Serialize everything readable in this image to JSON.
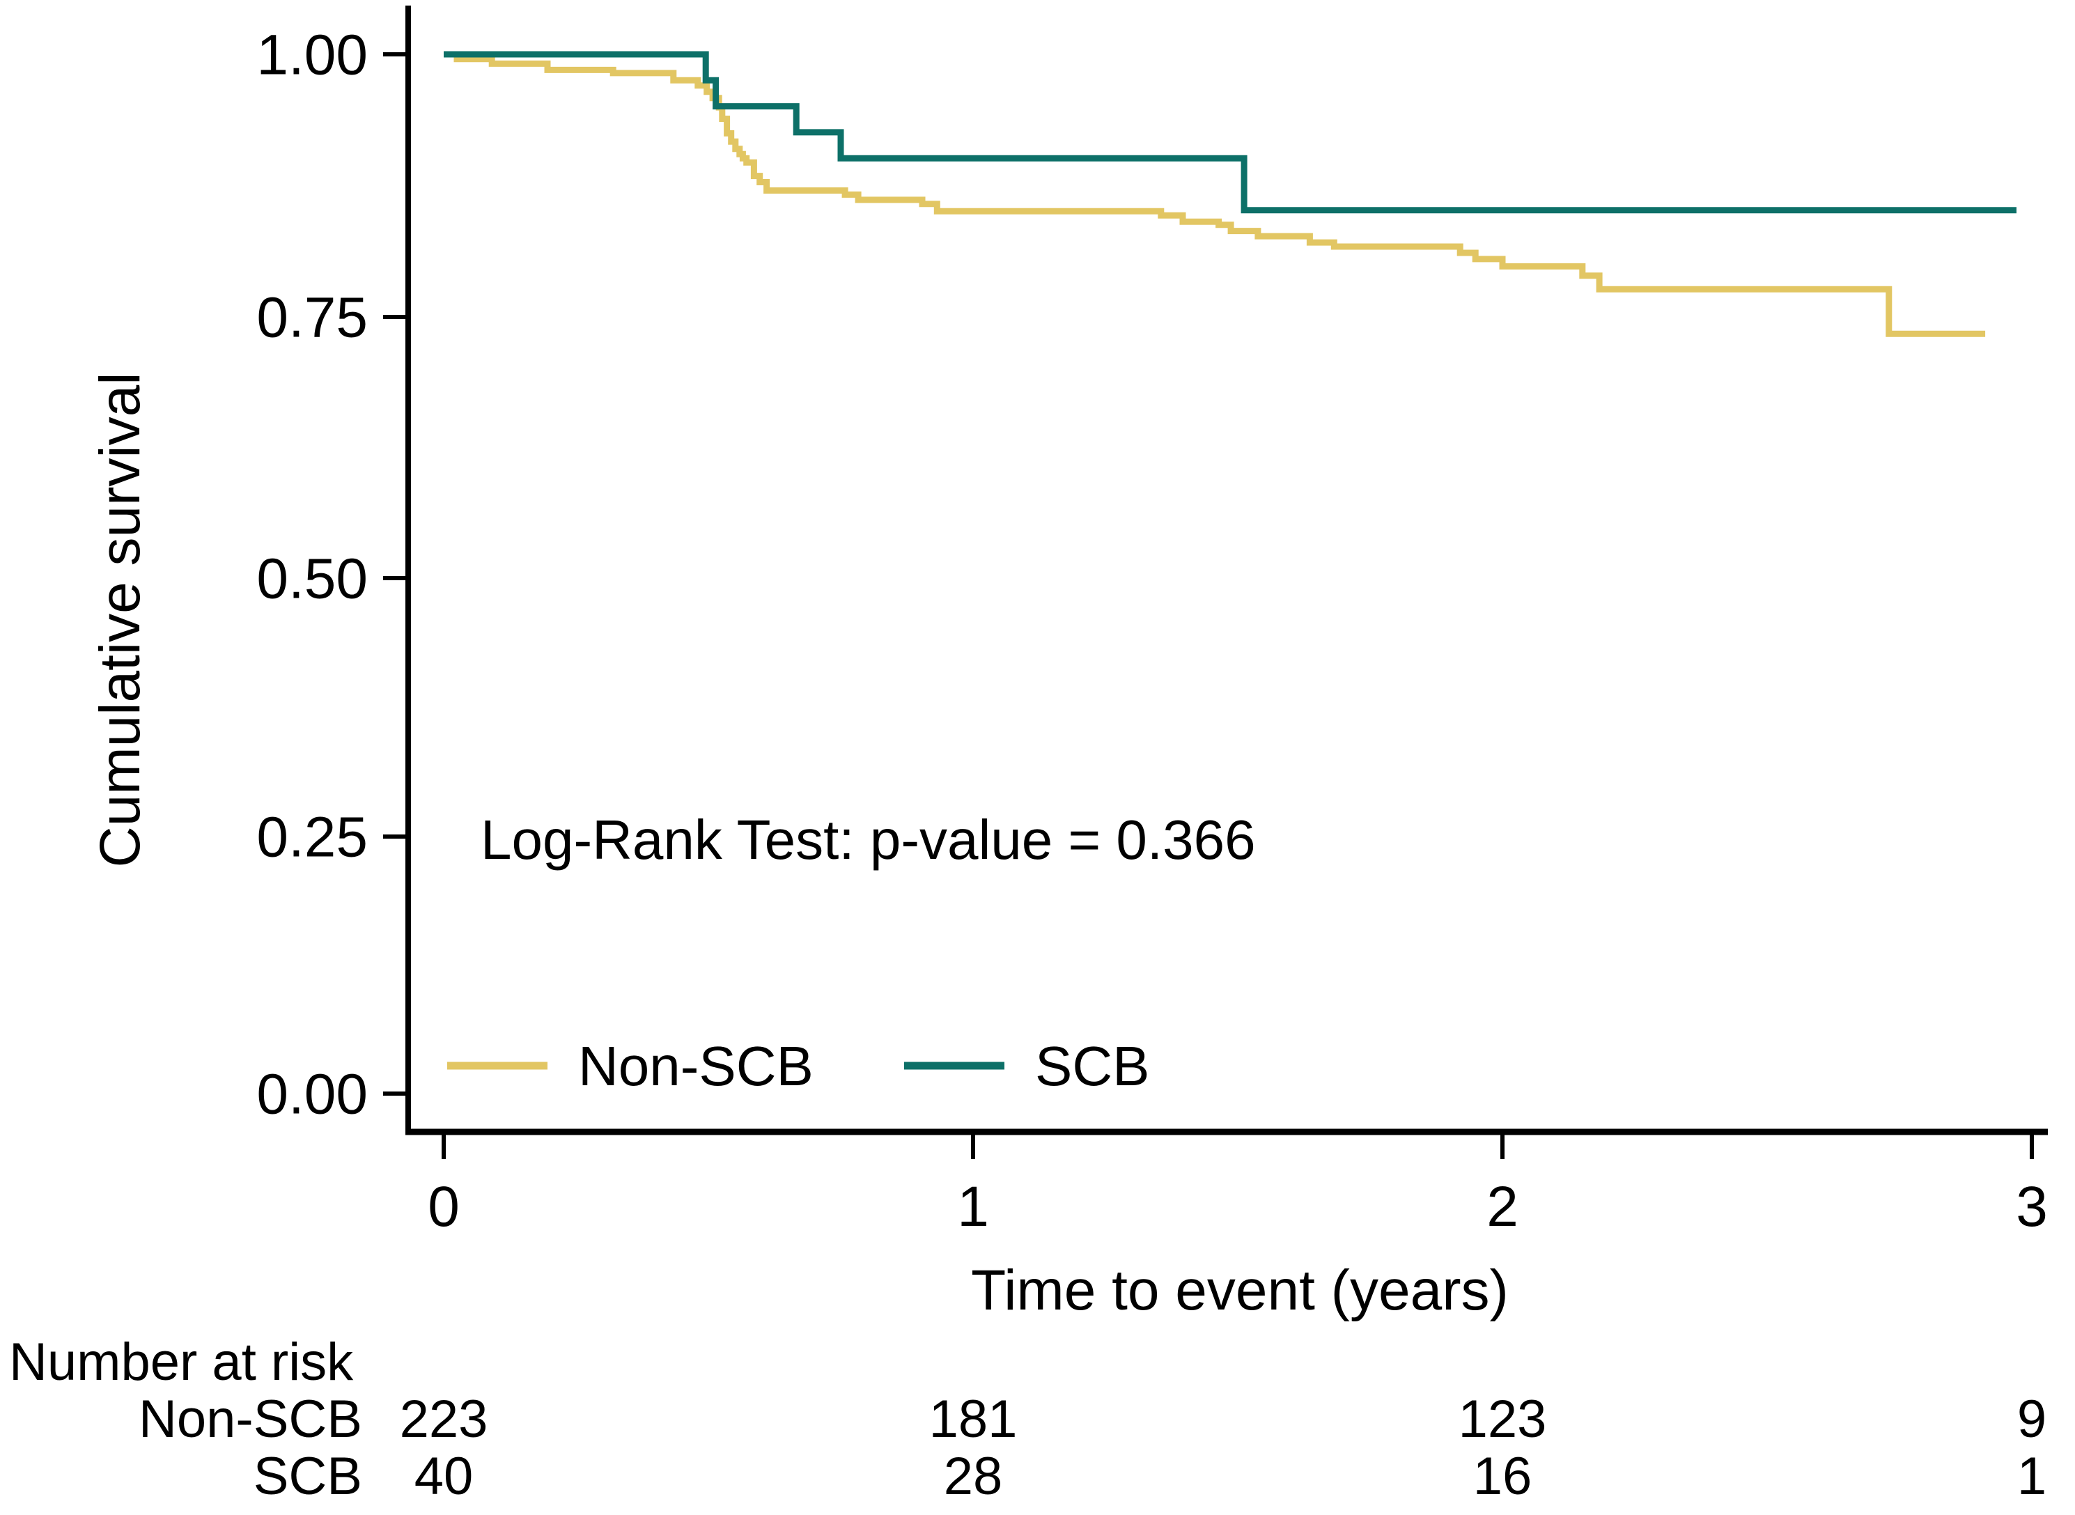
{
  "figure": {
    "y_axis": {
      "label": "Cumulative survival",
      "tick_labels": [
        "1.00",
        "0.75",
        "0.50",
        "0.25",
        "0.00"
      ]
    },
    "x_axis": {
      "label": "Time to event (years)",
      "tick_labels": [
        "0",
        "1",
        "2",
        "3"
      ]
    },
    "annotation": "Log-Rank Test: p-value = 0.366",
    "legend": {
      "items": [
        {
          "label": "Non-SCB",
          "color": "#e2c663"
        },
        {
          "label": "SCB",
          "color": "#0d7068"
        }
      ]
    },
    "risk_table": {
      "title": "Number at risk",
      "rows": [
        {
          "label": "Non-SCB",
          "values": [
            "223",
            "181",
            "123",
            "9"
          ]
        },
        {
          "label": "SCB",
          "values": [
            "40",
            "28",
            "16",
            "1"
          ]
        }
      ]
    }
  },
  "chart_data": {
    "type": "line",
    "subtype": "kaplan-meier-step",
    "title": "",
    "xlabel": "Time to event (years)",
    "ylabel": "Cumulative survival",
    "xlim": [
      0,
      3
    ],
    "ylim": [
      0.0,
      1.0
    ],
    "x_ticks": [
      0,
      1,
      2,
      3
    ],
    "y_ticks": [
      0.0,
      0.25,
      0.5,
      0.75,
      1.0
    ],
    "grid": false,
    "legend_position": "inside-bottom-left",
    "annotation": "Log-Rank Test: p-value = 0.366",
    "series": [
      {
        "name": "Non-SCB",
        "color": "#e2c663",
        "end_time": 2.912,
        "steps": [
          [
            0.0,
            1.0
          ],
          [
            0.025,
            0.9955
          ],
          [
            0.091,
            0.991
          ],
          [
            0.196,
            0.985
          ],
          [
            0.32,
            0.982
          ],
          [
            0.434,
            0.975
          ],
          [
            0.48,
            0.97
          ],
          [
            0.497,
            0.964
          ],
          [
            0.508,
            0.958
          ],
          [
            0.52,
            0.949
          ],
          [
            0.526,
            0.938
          ],
          [
            0.535,
            0.924
          ],
          [
            0.543,
            0.916
          ],
          [
            0.551,
            0.909
          ],
          [
            0.559,
            0.904
          ],
          [
            0.565,
            0.9
          ],
          [
            0.572,
            0.896
          ],
          [
            0.586,
            0.883
          ],
          [
            0.597,
            0.877
          ],
          [
            0.61,
            0.869
          ],
          [
            0.758,
            0.865
          ],
          [
            0.783,
            0.86
          ],
          [
            0.904,
            0.856
          ],
          [
            0.932,
            0.849
          ],
          [
            1.355,
            0.845
          ],
          [
            1.396,
            0.839
          ],
          [
            1.464,
            0.836
          ],
          [
            1.487,
            0.83
          ],
          [
            1.538,
            0.825
          ],
          [
            1.636,
            0.819
          ],
          [
            1.682,
            0.815
          ],
          [
            1.92,
            0.809
          ],
          [
            1.949,
            0.803
          ],
          [
            2.0,
            0.796
          ],
          [
            2.151,
            0.787
          ],
          [
            2.183,
            0.774
          ],
          [
            2.73,
            0.731
          ]
        ]
      },
      {
        "name": "SCB",
        "color": "#0d7068",
        "end_time": 2.971,
        "steps": [
          [
            0.0,
            1.0
          ],
          [
            0.495,
            0.975
          ],
          [
            0.514,
            0.95
          ],
          [
            0.666,
            0.925
          ],
          [
            0.75,
            0.9
          ],
          [
            1.512,
            0.85
          ]
        ]
      }
    ],
    "number_at_risk": {
      "title": "Number at risk",
      "times": [
        0,
        1,
        2,
        3
      ],
      "groups": [
        {
          "name": "Non-SCB",
          "counts": [
            223,
            181,
            123,
            9
          ]
        },
        {
          "name": "SCB",
          "counts": [
            40,
            28,
            16,
            1
          ]
        }
      ]
    }
  }
}
